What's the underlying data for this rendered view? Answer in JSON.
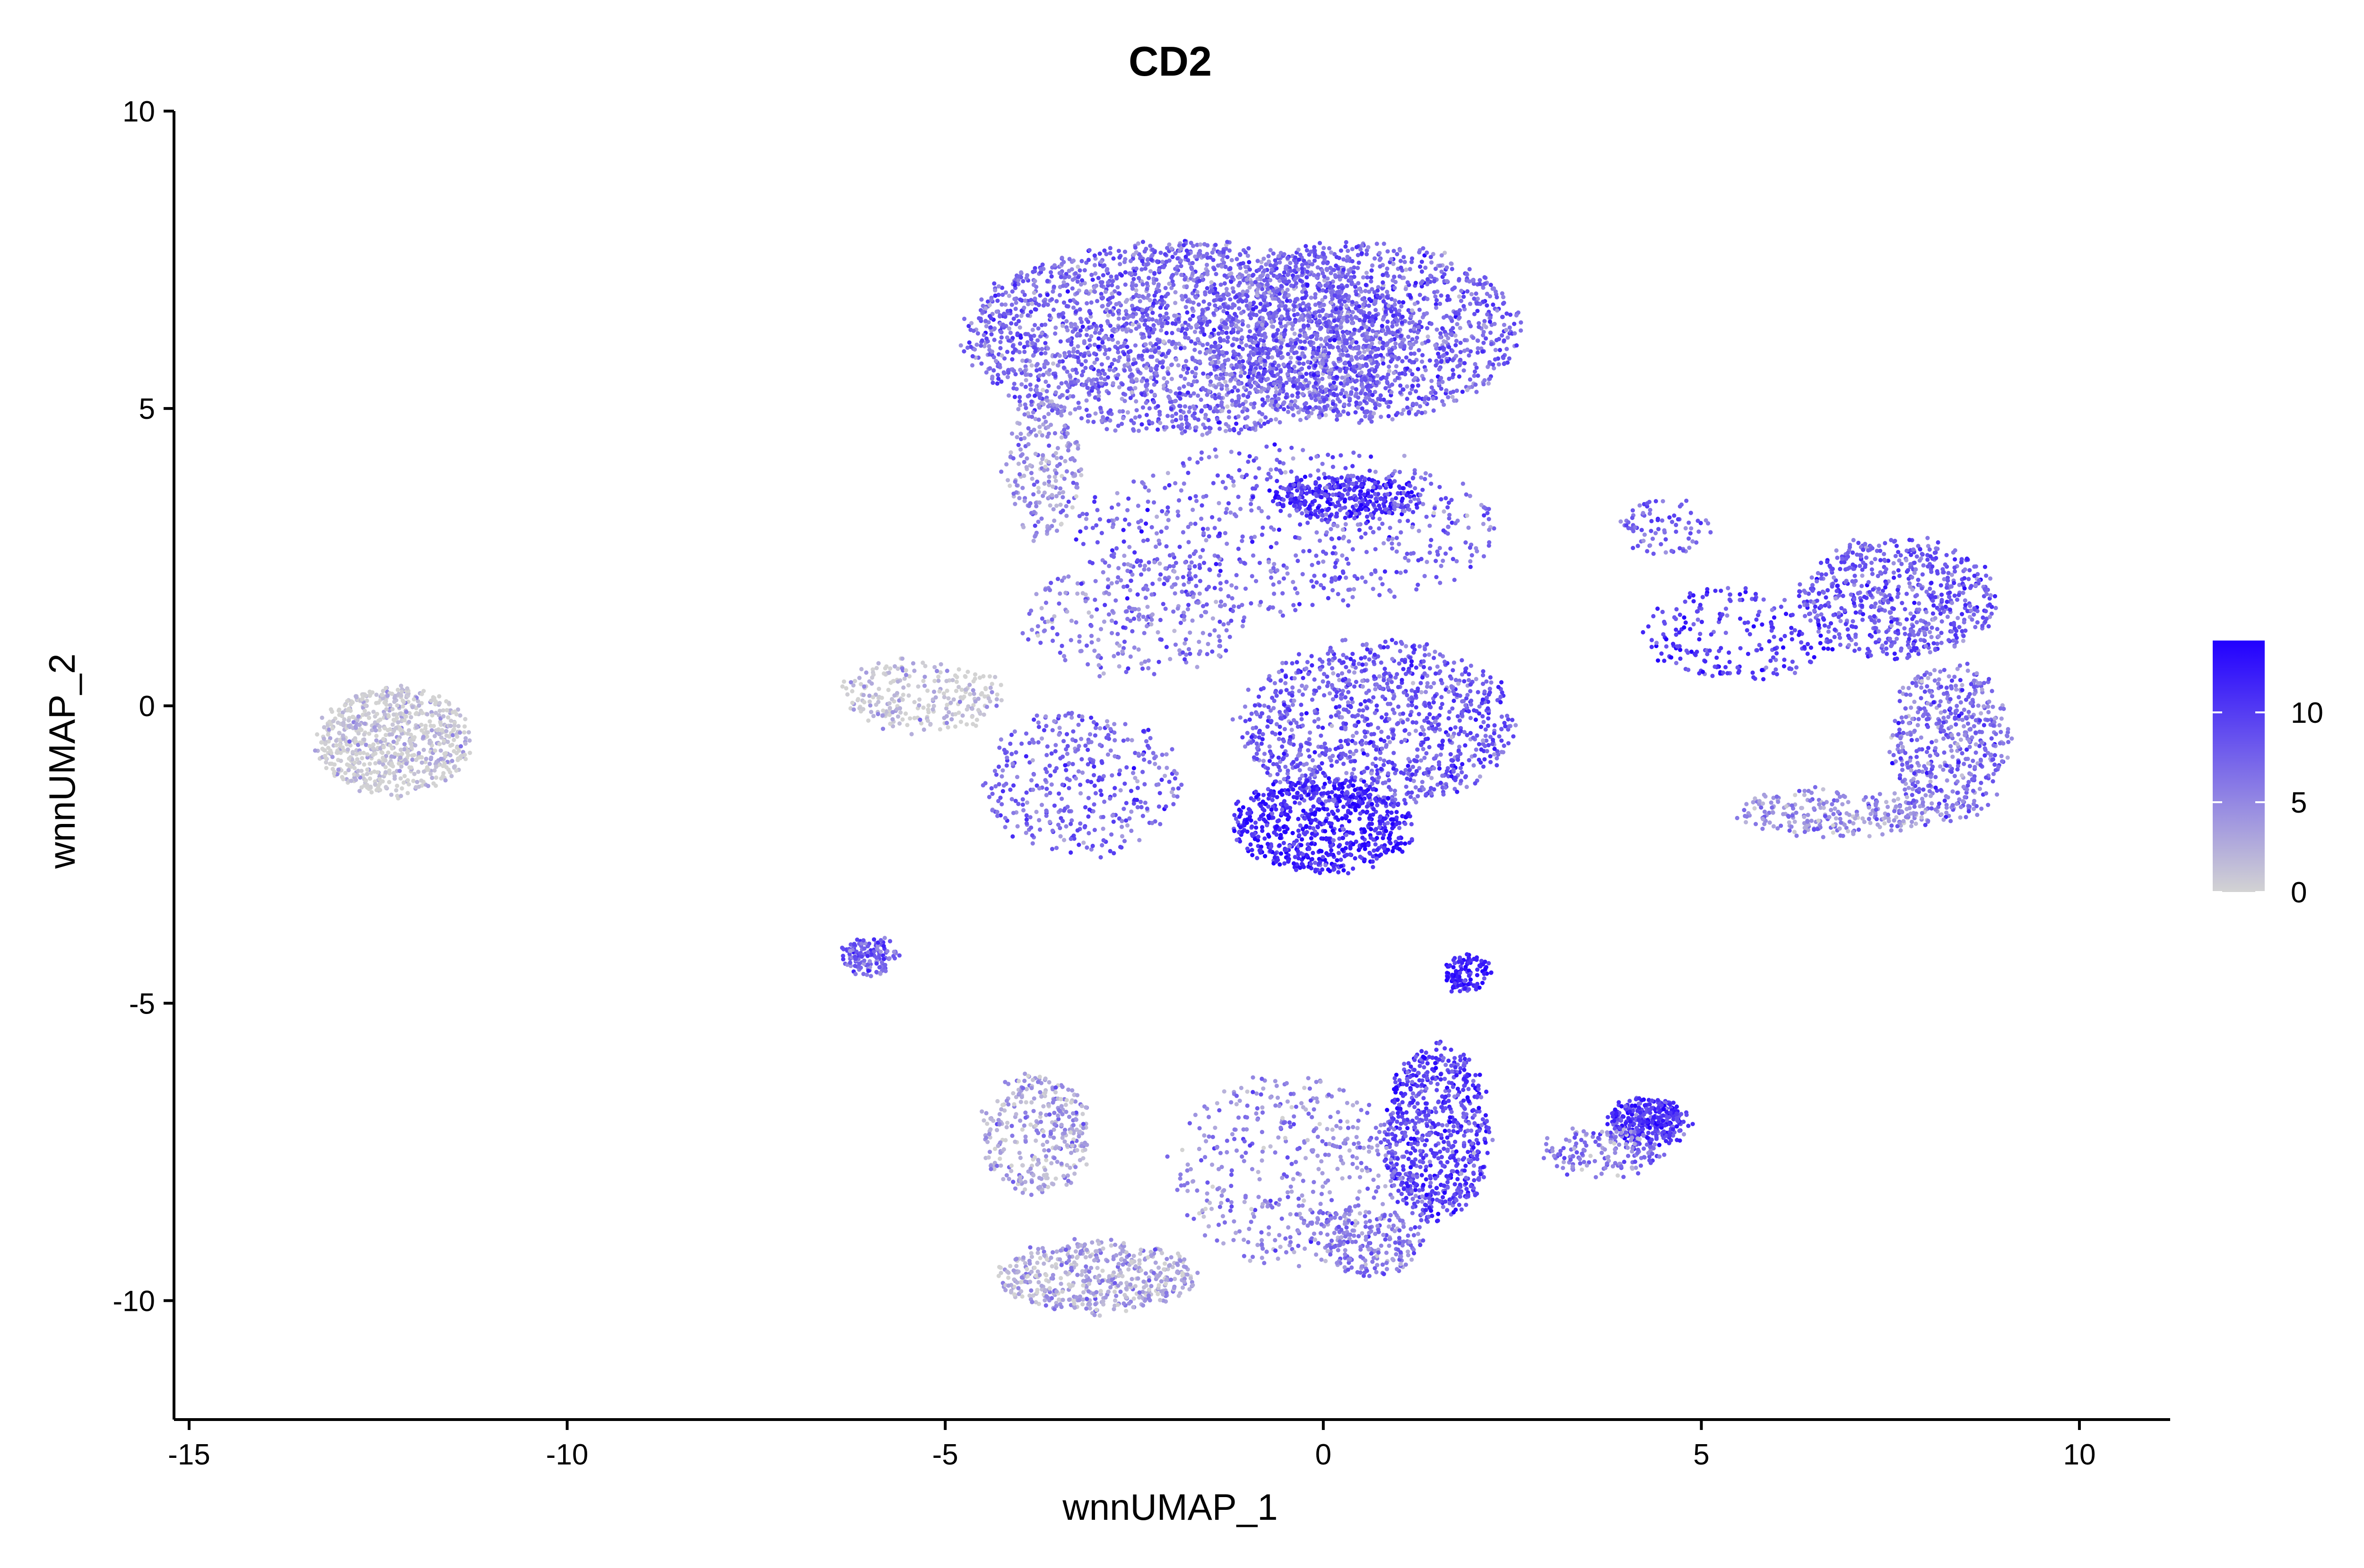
{
  "chart_data": {
    "type": "scatter",
    "title": "CD2",
    "xlabel": "wnnUMAP_1",
    "ylabel": "wnnUMAP_2",
    "xlim": [
      -15.2,
      11.2
    ],
    "ylim": [
      -12,
      10
    ],
    "xticks": [
      -15,
      -10,
      -5,
      0,
      5,
      10
    ],
    "yticks": [
      -10,
      -5,
      0,
      5,
      10
    ],
    "xtick_labels": [
      "-15",
      "-10",
      "-5",
      "0",
      "5",
      "10"
    ],
    "ytick_labels": [
      "-10",
      "-5",
      "0",
      "5",
      "10"
    ],
    "grid": false,
    "legend": {
      "placement": "right",
      "color_scale": {
        "low": "#d3d3d3",
        "high": "#2200ff",
        "min": 0,
        "max": 14
      },
      "ticks": [
        0,
        5,
        10
      ],
      "tick_labels": [
        "0",
        "5",
        "10"
      ]
    },
    "clusters": [
      {
        "cx": -1.8,
        "cy": 6.2,
        "rx": 3.0,
        "ry": 1.6,
        "n": 2600,
        "expr": 7.0
      },
      {
        "cx": 0.5,
        "cy": 6.3,
        "rx": 2.1,
        "ry": 1.5,
        "n": 1400,
        "expr": 7.5
      },
      {
        "cx": 0.3,
        "cy": 3.5,
        "rx": 1.0,
        "ry": 0.35,
        "n": 350,
        "expr": 11.0
      },
      {
        "cx": -3.7,
        "cy": 4.0,
        "rx": 0.5,
        "ry": 1.2,
        "n": 220,
        "expr": 4.5
      },
      {
        "cx": -0.5,
        "cy": 3.0,
        "rx": 2.8,
        "ry": 1.4,
        "n": 600,
        "expr": 7.5
      },
      {
        "cx": 0.7,
        "cy": -0.3,
        "rx": 1.8,
        "ry": 1.4,
        "n": 1100,
        "expr": 8.0
      },
      {
        "cx": 0.0,
        "cy": -2.0,
        "rx": 1.2,
        "ry": 0.8,
        "n": 700,
        "expr": 11.5
      },
      {
        "cx": -2.5,
        "cy": 1.5,
        "rx": 1.5,
        "ry": 1.0,
        "n": 280,
        "expr": 6.0
      },
      {
        "cx": -3.2,
        "cy": -1.3,
        "rx": 1.3,
        "ry": 1.2,
        "n": 380,
        "expr": 7.5
      },
      {
        "cx": -5.3,
        "cy": 0.2,
        "rx": 1.1,
        "ry": 0.6,
        "n": 260,
        "expr": 0.5
      },
      {
        "cx": -12.3,
        "cy": -0.6,
        "rx": 1.0,
        "ry": 0.9,
        "n": 750,
        "expr": 0.4
      },
      {
        "cx": -6.0,
        "cy": -4.2,
        "rx": 0.35,
        "ry": 0.3,
        "n": 140,
        "expr": 8.0
      },
      {
        "cx": 7.6,
        "cy": 1.8,
        "rx": 1.3,
        "ry": 1.0,
        "n": 650,
        "expr": 8.0
      },
      {
        "cx": 8.3,
        "cy": -0.6,
        "rx": 0.8,
        "ry": 1.3,
        "n": 500,
        "expr": 6.5
      },
      {
        "cx": 6.8,
        "cy": -1.8,
        "rx": 1.3,
        "ry": 0.4,
        "n": 260,
        "expr": 4.5
      },
      {
        "cx": 5.5,
        "cy": 1.2,
        "rx": 1.3,
        "ry": 0.8,
        "n": 220,
        "expr": 10.0
      },
      {
        "cx": 4.3,
        "cy": -7.0,
        "rx": 0.5,
        "ry": 0.4,
        "n": 330,
        "expr": 10.5
      },
      {
        "cx": 3.7,
        "cy": -7.5,
        "rx": 0.8,
        "ry": 0.4,
        "n": 160,
        "expr": 6.0
      },
      {
        "cx": 1.5,
        "cy": -7.2,
        "rx": 0.7,
        "ry": 1.5,
        "n": 720,
        "expr": 9.5
      },
      {
        "cx": 1.9,
        "cy": -4.5,
        "rx": 0.3,
        "ry": 0.3,
        "n": 110,
        "expr": 12.0
      },
      {
        "cx": -3.8,
        "cy": -7.2,
        "rx": 0.7,
        "ry": 1.0,
        "n": 330,
        "expr": 3.0
      },
      {
        "cx": -3.0,
        "cy": -9.6,
        "rx": 1.3,
        "ry": 0.6,
        "n": 520,
        "expr": 2.5
      },
      {
        "cx": -0.5,
        "cy": -7.8,
        "rx": 1.5,
        "ry": 1.6,
        "n": 420,
        "expr": 5.0
      },
      {
        "cx": 0.6,
        "cy": -9.0,
        "rx": 0.7,
        "ry": 0.6,
        "n": 220,
        "expr": 6.0
      },
      {
        "cx": 4.5,
        "cy": 3.0,
        "rx": 0.6,
        "ry": 0.5,
        "n": 80,
        "expr": 7.0
      }
    ]
  }
}
